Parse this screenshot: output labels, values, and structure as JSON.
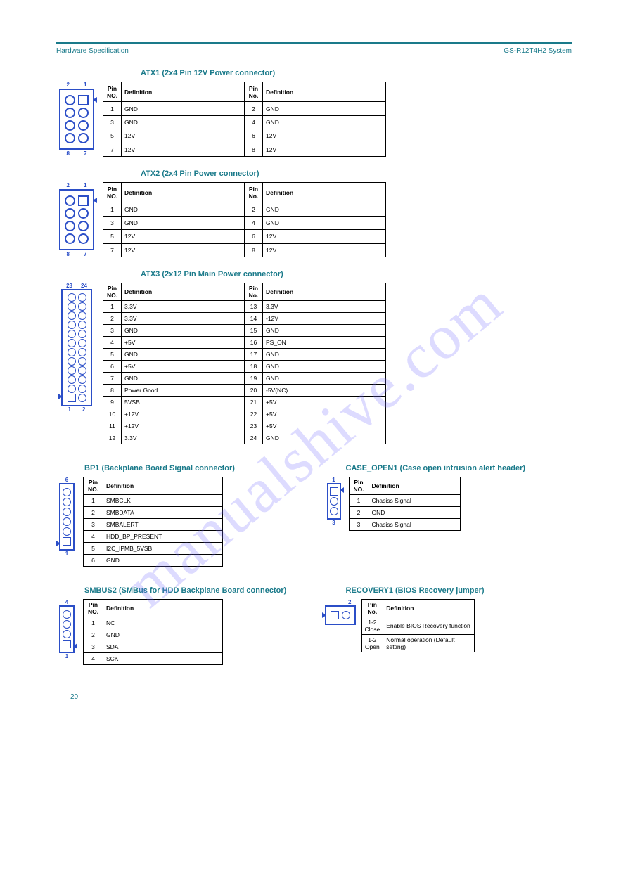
{
  "header": {
    "left": "Hardware Specification",
    "right": "GS-R12T4H2 System"
  },
  "page_number": "20",
  "watermark_text": "manualshive.com",
  "colors": {
    "accent": "#1a7a8a",
    "connector": "#2b4ec7",
    "text": "#000000"
  },
  "sections": [
    {
      "id": "atx1",
      "title": "ATX1 (2x4 Pin 12V Power connector)",
      "connector": {
        "type": "8-pin-2x4",
        "top_labels": [
          "2",
          "1"
        ],
        "bot_labels": [
          "8",
          "7"
        ]
      },
      "table": {
        "type": "4col-pinout",
        "headers": [
          "Pin NO.",
          "Definition",
          "Pin No.",
          "Definition"
        ],
        "rows": [
          [
            "1",
            "GND",
            "2",
            "GND"
          ],
          [
            "3",
            "GND",
            "4",
            "GND"
          ],
          [
            "5",
            "12V",
            "6",
            "12V"
          ],
          [
            "7",
            "12V",
            "8",
            "12V"
          ]
        ]
      }
    },
    {
      "id": "atx2",
      "title": "ATX2 (2x4 Pin Power connector)",
      "connector": {
        "type": "8-pin-2x4",
        "top_labels": [
          "2",
          "1"
        ],
        "bot_labels": [
          "8",
          "7"
        ]
      },
      "table": {
        "type": "4col-pinout",
        "headers": [
          "Pin NO.",
          "Definition",
          "Pin No.",
          "Definition"
        ],
        "rows": [
          [
            "1",
            "GND",
            "2",
            "GND"
          ],
          [
            "3",
            "GND",
            "4",
            "GND"
          ],
          [
            "5",
            "12V",
            "6",
            "12V"
          ],
          [
            "7",
            "12V",
            "8",
            "12V"
          ]
        ]
      }
    },
    {
      "id": "atx3",
      "title": "ATX3 (2x12 Pin Main Power connector)",
      "connector": {
        "type": "24-pin-2x12",
        "top_labels": [
          "23",
          "24"
        ],
        "bot_labels": [
          "1",
          "2"
        ]
      },
      "table": {
        "type": "4col-pinout",
        "headers": [
          "Pin NO.",
          "Definition",
          "Pin No.",
          "Definition"
        ],
        "rows": [
          [
            "1",
            "3.3V",
            "13",
            "3.3V"
          ],
          [
            "2",
            "3.3V",
            "14",
            "-12V"
          ],
          [
            "3",
            "GND",
            "15",
            "GND"
          ],
          [
            "4",
            "+5V",
            "16",
            "PS_ON"
          ],
          [
            "5",
            "GND",
            "17",
            "GND"
          ],
          [
            "6",
            "+5V",
            "18",
            "GND"
          ],
          [
            "7",
            "GND",
            "19",
            "GND"
          ],
          [
            "8",
            "Power Good",
            "20",
            "-5V(NC)"
          ],
          [
            "9",
            "5VSB",
            "21",
            "+5V"
          ],
          [
            "10",
            "+12V",
            "22",
            "+5V"
          ],
          [
            "11",
            "+12V",
            "23",
            "+5V"
          ],
          [
            "12",
            "3.3V",
            "24",
            "GND"
          ]
        ]
      }
    }
  ],
  "dual1": {
    "left": {
      "title": "BP1 (Backplane Board Signal connector)",
      "connector": {
        "type": "6-pin-1x6",
        "top_label": "6",
        "bot_label": "1"
      },
      "table": {
        "headers": [
          "Pin NO.",
          "Definition"
        ],
        "rows": [
          [
            "1",
            "SMBCLK"
          ],
          [
            "2",
            "SMBDATA"
          ],
          [
            "3",
            "SMBALERT"
          ],
          [
            "4",
            "HDD_BP_PRESENT"
          ],
          [
            "5",
            "I2C_IPMB_5VSB"
          ],
          [
            "6",
            "GND"
          ]
        ]
      }
    },
    "right": {
      "title": "CASE_OPEN1 (Case open intrusion alert header)",
      "connector": {
        "type": "3-pin-1x3",
        "top_label": "1",
        "bot_label": "3"
      },
      "table": {
        "headers": [
          "Pin NO.",
          "Definition"
        ],
        "rows": [
          [
            "1",
            "Chasiss Signal"
          ],
          [
            "2",
            "GND"
          ],
          [
            "3",
            "Chasiss Signal"
          ]
        ]
      }
    }
  },
  "dual2": {
    "left": {
      "title": "SMBUS2 (SMBus for HDD Backplane Board connector)",
      "connector": {
        "type": "4-pin-1x4",
        "top_label": "4",
        "bot_label": "1"
      },
      "table": {
        "headers": [
          "Pin NO.",
          "Definition"
        ],
        "rows": [
          [
            "1",
            "NC"
          ],
          [
            "2",
            "GND"
          ],
          [
            "3",
            "SDA"
          ],
          [
            "4",
            "SCK"
          ]
        ]
      }
    },
    "right": {
      "title": "RECOVERY1 (BIOS Recovery jumper)",
      "connector": {
        "type": "2-pin-1x2",
        "top_label": "2"
      },
      "table": {
        "headers": [
          "Pin No.",
          "Definition"
        ],
        "rows": [
          [
            "1-2 Close",
            "Enable BIOS Recovery function"
          ],
          [
            "1-2 Open",
            "Normal operation (Default setting)"
          ]
        ]
      }
    }
  }
}
